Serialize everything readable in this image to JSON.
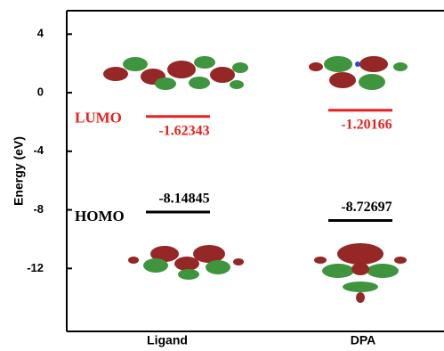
{
  "chart_data": {
    "type": "level",
    "y_label": "Energy (eV)",
    "categories": [
      "Ligand",
      "DPA"
    ],
    "series": [
      {
        "name": "LUMO",
        "color": "#e8201f",
        "values": [
          -1.62343,
          -1.20166
        ]
      },
      {
        "name": "HOMO",
        "color": "#000000",
        "values": [
          -8.14845,
          -8.72697
        ]
      }
    ],
    "ylim": [
      -16.3,
      5.6
    ],
    "yticks": [
      4,
      0,
      -4,
      -8,
      -12
    ]
  }
}
